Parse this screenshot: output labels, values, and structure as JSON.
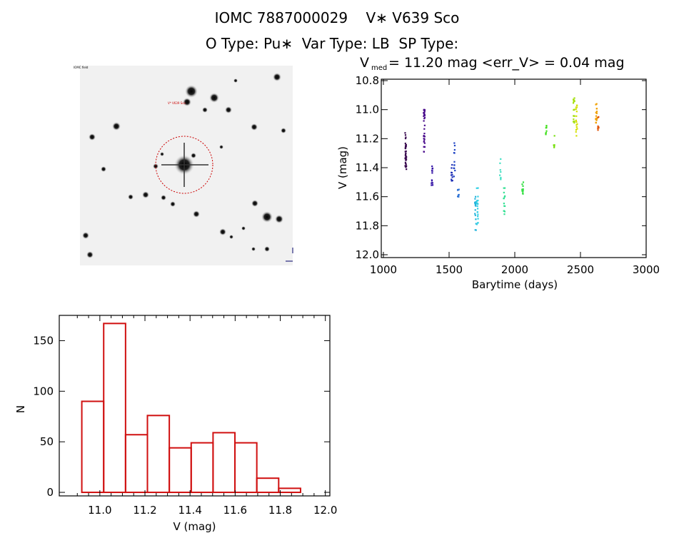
{
  "header": {
    "line1": "IOMC 7887000029    V∗ V639 Sco",
    "line2": "O Type: Pu∗  Var Type: LB  SP Type:"
  },
  "thumbnail": {
    "label_top": "IOMC field",
    "label_target": "V* V639 Sco"
  },
  "chart_data": [
    {
      "type": "scatter",
      "title_main": "V",
      "title_sub": "med",
      "title_rest": " = 11.20 mag <err_V> = 0.04 mag",
      "xlabel": "Barytime (days)",
      "ylabel": "V (mag)",
      "xlim": [
        1000,
        3000
      ],
      "ylim": [
        12.0,
        10.8
      ],
      "y_inverted": true,
      "xticks": [
        "1000",
        "1500",
        "2000",
        "2500",
        "3000"
      ],
      "yticks": [
        "10.8",
        "11.0",
        "11.2",
        "11.4",
        "11.6",
        "11.8",
        "12.0"
      ],
      "clusters": [
        {
          "t": 1170,
          "vmin": 11.16,
          "vmax": 11.41,
          "n": 40,
          "color": "#3a0a50"
        },
        {
          "t": 1310,
          "vmin": 11.0,
          "vmax": 11.29,
          "n": 30,
          "color": "#4a0c8c"
        },
        {
          "t": 1370,
          "vmin": 11.39,
          "vmax": 11.52,
          "n": 14,
          "color": "#3312a6"
        },
        {
          "t": 1520,
          "vmin": 11.38,
          "vmax": 11.49,
          "n": 10,
          "color": "#1c2cb4"
        },
        {
          "t": 1540,
          "vmin": 11.23,
          "vmax": 11.46,
          "n": 12,
          "color": "#2044c4"
        },
        {
          "t": 1570,
          "vmin": 11.55,
          "vmax": 11.6,
          "n": 8,
          "color": "#2a70d4"
        },
        {
          "t": 1700,
          "vmin": 11.6,
          "vmax": 11.83,
          "n": 16,
          "color": "#22b4dc"
        },
        {
          "t": 1715,
          "vmin": 11.54,
          "vmax": 11.79,
          "n": 20,
          "color": "#34d0e4"
        },
        {
          "t": 1890,
          "vmin": 11.34,
          "vmax": 11.48,
          "n": 8,
          "color": "#44e0c4"
        },
        {
          "t": 1920,
          "vmin": 11.54,
          "vmax": 11.72,
          "n": 14,
          "color": "#34e094"
        },
        {
          "t": 2060,
          "vmin": 11.5,
          "vmax": 11.58,
          "n": 10,
          "color": "#34e044"
        },
        {
          "t": 2240,
          "vmin": 11.11,
          "vmax": 11.17,
          "n": 8,
          "color": "#44e020"
        },
        {
          "t": 2300,
          "vmin": 11.18,
          "vmax": 11.26,
          "n": 6,
          "color": "#78e010"
        },
        {
          "t": 2450,
          "vmin": 10.92,
          "vmax": 11.09,
          "n": 18,
          "color": "#a4e010"
        },
        {
          "t": 2470,
          "vmin": 10.97,
          "vmax": 11.18,
          "n": 16,
          "color": "#d4e000"
        },
        {
          "t": 2620,
          "vmin": 10.96,
          "vmax": 11.09,
          "n": 16,
          "color": "#f0a000"
        },
        {
          "t": 2635,
          "vmin": 11.05,
          "vmax": 11.14,
          "n": 8,
          "color": "#e05000"
        }
      ]
    },
    {
      "type": "bar",
      "xlabel": "V (mag)",
      "ylabel": "N",
      "xlim": [
        10.82,
        12.02
      ],
      "ylim": [
        -3.5,
        175
      ],
      "xticks": [
        "11.0",
        "11.2",
        "11.4",
        "11.6",
        "11.8",
        "12.0"
      ],
      "yticks": [
        "0",
        "50",
        "100",
        "150"
      ],
      "bin_start": 10.92,
      "bin_width": 0.097,
      "values": [
        90,
        167,
        57,
        76,
        44,
        49,
        59,
        49,
        14,
        4
      ],
      "bar_color": "#d01010"
    }
  ]
}
